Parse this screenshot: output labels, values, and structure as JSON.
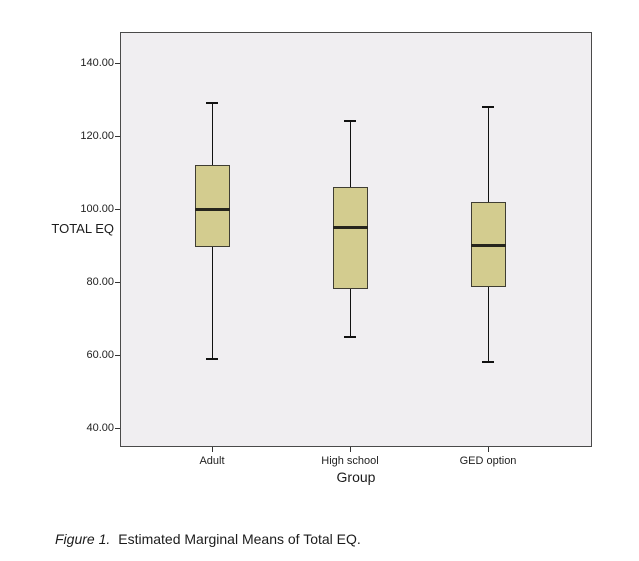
{
  "caption": {
    "label": "Figure 1.",
    "text": "Estimated Marginal Means of Total EQ."
  },
  "chart_data": {
    "type": "boxplot",
    "title": "",
    "xlabel": "Group",
    "ylabel": "TOTAL EQ",
    "categories": [
      "Adult",
      "High school",
      "GED option"
    ],
    "series": [
      {
        "name": "Adult",
        "whisker_low": 59,
        "q1": 89.5,
        "median": 100,
        "q3": 112,
        "whisker_high": 129
      },
      {
        "name": "High school",
        "whisker_low": 65,
        "q1": 78,
        "median": 95,
        "q3": 106,
        "whisker_high": 124
      },
      {
        "name": "GED option",
        "whisker_low": 58,
        "q1": 78.5,
        "median": 90,
        "q3": 102,
        "whisker_high": 128
      }
    ],
    "y_ticks": [
      {
        "value": 40,
        "label": "40.00"
      },
      {
        "value": 60,
        "label": "60.00"
      },
      {
        "value": 80,
        "label": "80.00"
      },
      {
        "value": 100,
        "label": "100.00"
      },
      {
        "value": 120,
        "label": "120.00"
      },
      {
        "value": 140,
        "label": "140.00"
      }
    ],
    "ylim": [
      34.8,
      148.5
    ],
    "grid": false,
    "legend": null,
    "colors": {
      "box_fill": "#d3cc8f",
      "box_border": "#3f3d33",
      "median_line": "#26251d",
      "whisker": "#111111",
      "plot_background": "#f0eef1",
      "plot_border": "#4a4a4a",
      "tick": "#333333",
      "text": "#1c1c1c"
    }
  }
}
